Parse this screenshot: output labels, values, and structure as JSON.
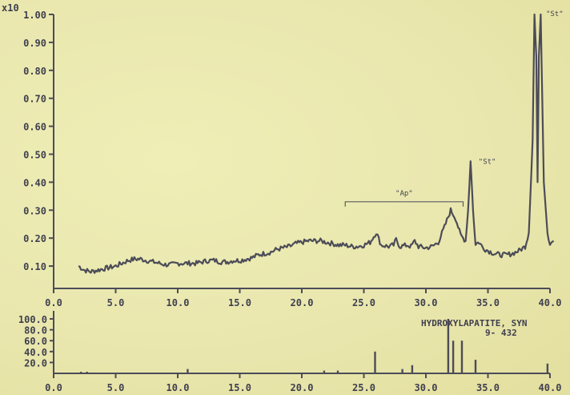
{
  "chart_data": [
    {
      "type": "line",
      "y_multiplier_label": "x10",
      "yticks": [
        "0.10",
        "0.20",
        "0.30",
        "0.40",
        "0.50",
        "0.60",
        "0.70",
        "0.80",
        "0.90",
        "1.00"
      ],
      "xticks": [
        "0.0",
        "5.0",
        "10.0",
        "15.0",
        "20.0",
        "25.0",
        "30.0",
        "35.0",
        "40.0"
      ],
      "xlim": [
        0,
        40
      ],
      "ylim": [
        0.02,
        1.0
      ],
      "grid": false,
      "annotations": {
        "bracket_label": "\"Ap\"",
        "bracket_range": [
          23.5,
          33.0
        ],
        "bracket_y": 0.33,
        "peak1_label": "\"St\"",
        "peak1_x": 33.6,
        "peak2_label": "\"St\"",
        "peak2_x": 38.9
      },
      "series": [
        {
          "color": "#4c4c58",
          "points": [
            [
              2.0,
              0.1
            ],
            [
              2.5,
              0.085
            ],
            [
              3.0,
              0.08
            ],
            [
              3.5,
              0.085
            ],
            [
              4.0,
              0.09
            ],
            [
              4.5,
              0.095
            ],
            [
              5.0,
              0.1
            ],
            [
              5.5,
              0.11
            ],
            [
              6.0,
              0.12
            ],
            [
              6.5,
              0.125
            ],
            [
              7.0,
              0.125
            ],
            [
              7.5,
              0.12
            ],
            [
              8.0,
              0.115
            ],
            [
              8.5,
              0.11
            ],
            [
              9.0,
              0.105
            ],
            [
              9.5,
              0.105
            ],
            [
              10.0,
              0.11
            ],
            [
              10.5,
              0.11
            ],
            [
              11.0,
              0.11
            ],
            [
              11.5,
              0.11
            ],
            [
              12.0,
              0.115
            ],
            [
              12.5,
              0.12
            ],
            [
              13.0,
              0.12
            ],
            [
              13.5,
              0.115
            ],
            [
              14.0,
              0.115
            ],
            [
              14.5,
              0.12
            ],
            [
              15.0,
              0.12
            ],
            [
              15.5,
              0.125
            ],
            [
              16.0,
              0.13
            ],
            [
              16.5,
              0.14
            ],
            [
              17.0,
              0.145
            ],
            [
              17.5,
              0.15
            ],
            [
              18.0,
              0.16
            ],
            [
              18.5,
              0.165
            ],
            [
              19.0,
              0.17
            ],
            [
              19.5,
              0.18
            ],
            [
              20.0,
              0.185
            ],
            [
              20.5,
              0.19
            ],
            [
              21.0,
              0.19
            ],
            [
              21.5,
              0.19
            ],
            [
              22.0,
              0.185
            ],
            [
              22.5,
              0.18
            ],
            [
              23.0,
              0.175
            ],
            [
              23.5,
              0.175
            ],
            [
              24.0,
              0.17
            ],
            [
              24.5,
              0.17
            ],
            [
              25.0,
              0.175
            ],
            [
              25.5,
              0.185
            ],
            [
              26.0,
              0.22
            ],
            [
              26.4,
              0.175
            ],
            [
              27.0,
              0.17
            ],
            [
              27.4,
              0.175
            ],
            [
              27.6,
              0.195
            ],
            [
              27.9,
              0.17
            ],
            [
              28.5,
              0.175
            ],
            [
              28.8,
              0.17
            ],
            [
              29.1,
              0.19
            ],
            [
              29.4,
              0.17
            ],
            [
              30.0,
              0.165
            ],
            [
              30.5,
              0.17
            ],
            [
              31.0,
              0.185
            ],
            [
              31.5,
              0.24
            ],
            [
              32.0,
              0.3
            ],
            [
              32.4,
              0.27
            ],
            [
              32.8,
              0.21
            ],
            [
              33.2,
              0.19
            ],
            [
              33.4,
              0.3
            ],
            [
              33.6,
              0.475
            ],
            [
              33.8,
              0.3
            ],
            [
              34.0,
              0.18
            ],
            [
              34.3,
              0.185
            ],
            [
              34.6,
              0.165
            ],
            [
              35.0,
              0.155
            ],
            [
              35.5,
              0.145
            ],
            [
              36.0,
              0.14
            ],
            [
              36.5,
              0.14
            ],
            [
              37.0,
              0.145
            ],
            [
              37.5,
              0.155
            ],
            [
              38.0,
              0.17
            ],
            [
              38.3,
              0.22
            ],
            [
              38.6,
              0.55
            ],
            [
              38.75,
              1.0
            ],
            [
              38.9,
              0.85
            ],
            [
              39.0,
              0.4
            ],
            [
              39.1,
              0.85
            ],
            [
              39.25,
              1.0
            ],
            [
              39.5,
              0.4
            ],
            [
              39.8,
              0.22
            ],
            [
              40.0,
              0.18
            ],
            [
              40.3,
              0.19
            ]
          ]
        }
      ]
    },
    {
      "type": "bar",
      "yticks": [
        "20.0",
        "40.0",
        "60.0",
        "80.0",
        "100.0"
      ],
      "xticks": [
        "0.0",
        "5.0",
        "10.0",
        "15.0",
        "20.0",
        "25.0",
        "30.0",
        "35.0",
        "40.0"
      ],
      "xlim": [
        0,
        40
      ],
      "ylim": [
        0,
        100
      ],
      "legend_line1": "HYDROXYLAPATITE, SYN",
      "legend_line2": "9- 432",
      "x": [
        2.2,
        2.7,
        10.8,
        21.8,
        22.9,
        25.9,
        28.1,
        28.9,
        31.8,
        32.2,
        32.9,
        34.0,
        39.8
      ],
      "values": [
        3,
        3,
        8,
        5,
        5,
        40,
        8,
        15,
        100,
        60,
        60,
        25,
        18
      ]
    }
  ]
}
